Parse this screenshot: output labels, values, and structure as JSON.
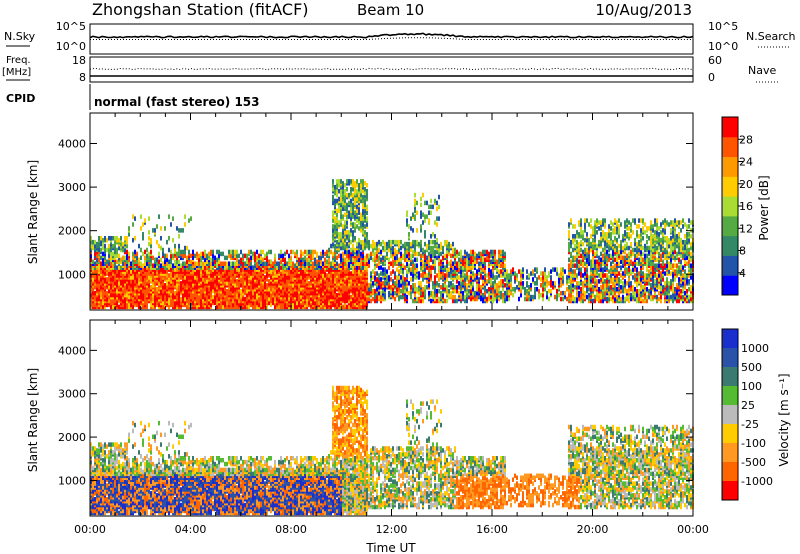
{
  "header": {
    "station_title": "Zhongshan Station (fitACF)",
    "beam_label": "Beam 10",
    "date_label": "10/Aug/2013"
  },
  "panels": {
    "sky": {
      "left_label": "N.Sky",
      "left_ticks": [
        "10^5",
        "10^0"
      ],
      "right_label": "N.Search",
      "right_ticks": [
        "10^5",
        "10^0"
      ]
    },
    "freq": {
      "left_label_1": "Freq.",
      "left_label_2": "[MHz]",
      "left_ticks": [
        "18",
        "8"
      ],
      "right_label": "Nave",
      "right_ticks": [
        "60",
        "0"
      ]
    },
    "cpid": {
      "label": "CPID",
      "text": "normal (fast stereo) 153"
    }
  },
  "colors": {
    "power_scale": [
      "#0000ff",
      "#2255aa",
      "#338866",
      "#55aa44",
      "#aadd33",
      "#ffcc00",
      "#ff9900",
      "#ff5500",
      "#ff0000"
    ],
    "velocity_scale": [
      "#1a2fcc",
      "#2a52a8",
      "#3a7a70",
      "#55bb33",
      "#bbbbbb",
      "#ffcc00",
      "#ff9922",
      "#ff6600",
      "#ff0000"
    ]
  },
  "chart_data": [
    {
      "type": "heatmap",
      "name": "power",
      "title": "",
      "ylabel": "Slant Range [km]",
      "ylim": [
        180,
        4700
      ],
      "y_ticks": [
        "1000",
        "2000",
        "3000",
        "4000"
      ],
      "x_ticks": [
        "00:00",
        "04:00",
        "08:00",
        "12:00",
        "16:00",
        "20:00",
        "00:00"
      ],
      "colorbar": {
        "label": "Power [dB]",
        "ticks": [
          "4",
          "8",
          "12",
          "16",
          "20",
          "24",
          "28"
        ]
      }
    },
    {
      "type": "heatmap",
      "name": "velocity",
      "title": "",
      "ylabel": "Slant Range [km]",
      "xlabel": "Time UT",
      "ylim": [
        180,
        4700
      ],
      "y_ticks": [
        "1000",
        "2000",
        "3000",
        "4000"
      ],
      "x_ticks": [
        "00:00",
        "04:00",
        "08:00",
        "12:00",
        "16:00",
        "20:00",
        "00:00"
      ],
      "colorbar": {
        "label": "Velocity [m s⁻¹]",
        "ticks": [
          "1000",
          "500",
          "100",
          "25",
          "-25",
          "-100",
          "-500",
          "-1000"
        ]
      }
    }
  ]
}
